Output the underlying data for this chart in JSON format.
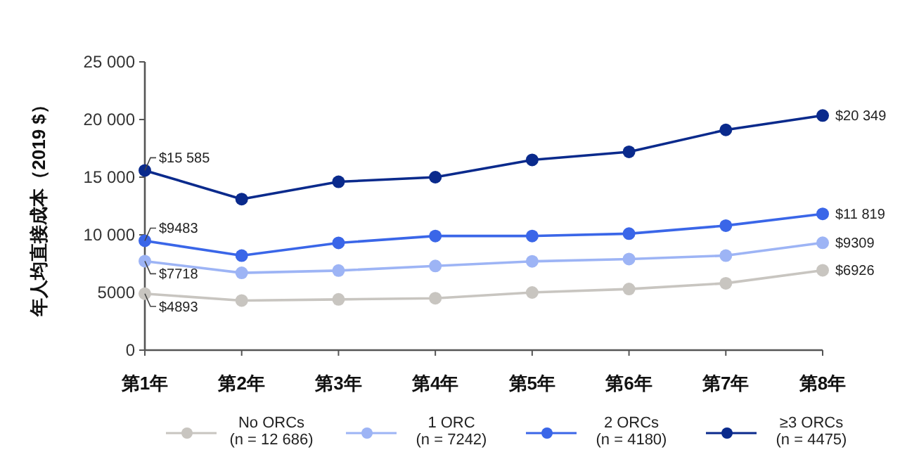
{
  "chart_data": {
    "type": "line",
    "ylabel": "年人均直接成本（2019 $）",
    "categories": [
      "第1年",
      "第2年",
      "第3年",
      "第4年",
      "第5年",
      "第6年",
      "第7年",
      "第8年"
    ],
    "ylim": [
      0,
      25000
    ],
    "yticks": [
      0,
      5000,
      {
        "value": 10000,
        "label": "10 000"
      },
      {
        "value": 15000,
        "label": "15 000"
      },
      {
        "value": 20000,
        "label": "20 000"
      },
      {
        "value": 25000,
        "label": "25 000"
      }
    ],
    "grid": false,
    "legend": "bottom",
    "marker": "circle",
    "line_style": "solid",
    "series": [
      {
        "name": "No ORCs\n(n = 12 686)",
        "color": "#c8c5c0",
        "values": [
          4893,
          4300,
          4400,
          4500,
          5000,
          5300,
          5800,
          6926
        ],
        "value_labels": [
          "$4893",
          null,
          null,
          null,
          null,
          null,
          null,
          "$6926"
        ]
      },
      {
        "name": "1 ORC\n(n = 7242)",
        "color": "#9db4f5",
        "values": [
          7718,
          6700,
          6900,
          7300,
          7700,
          7900,
          8200,
          9309
        ],
        "value_labels": [
          "$7718",
          null,
          null,
          null,
          null,
          null,
          null,
          "$9309"
        ]
      },
      {
        "name": "2 ORCs\n(n = 4180)",
        "color": "#3a66e8",
        "values": [
          9483,
          8200,
          9300,
          9900,
          9900,
          10100,
          10800,
          11819
        ],
        "value_labels": [
          "$9483",
          null,
          null,
          null,
          null,
          null,
          null,
          "$11 819"
        ]
      },
      {
        "name": "≥3 ORCs\n(n = 4475)",
        "color": "#0a2a8c",
        "values": [
          15585,
          13100,
          14600,
          15000,
          16500,
          17200,
          19100,
          20349
        ],
        "value_labels": [
          "$15 585",
          null,
          null,
          null,
          null,
          null,
          null,
          "$20 349"
        ]
      }
    ]
  }
}
